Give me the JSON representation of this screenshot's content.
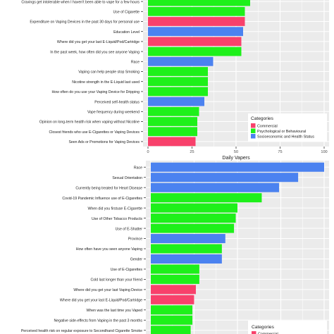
{
  "colors": {
    "commercial": "#F8416B",
    "psych": "#1EF01A",
    "socio": "#4B82F0",
    "panel": "#EBEBEB",
    "grid": "#ffffff"
  },
  "chart_data": [
    {
      "type": "bar",
      "orientation": "horizontal",
      "xlabel": "Daily Vapers",
      "xlim": [
        0,
        100
      ],
      "xticks": [
        "0",
        "25",
        "50",
        "75",
        "100"
      ],
      "grid": true,
      "legend_position": "right",
      "legend": {
        "title": "Categories",
        "entries": [
          {
            "label": "Commercial",
            "key": "commercial"
          },
          {
            "label": "Psychological or Behavioural",
            "key": "psych"
          },
          {
            "label": "Socioeconomic and Health Status",
            "key": "socio"
          }
        ]
      },
      "bars": [
        {
          "label": "Cravings get intolerable when I haven't been able to vape for a few hours",
          "value": 58,
          "cat": "psych"
        },
        {
          "label": "Use of Cigarette",
          "value": 55,
          "cat": "psych"
        },
        {
          "label": "Expenditure on Vaping Devices in the past 30 days for personal use",
          "value": 55,
          "cat": "commercial"
        },
        {
          "label": "Education Level",
          "value": 54,
          "cat": "socio"
        },
        {
          "label": "Where did you get your last E-Liquid/Pod/Cartridge",
          "value": 53,
          "cat": "commercial"
        },
        {
          "label": "In the past week, how often did you see anyone Vaping",
          "value": 53,
          "cat": "psych"
        },
        {
          "label": "Race",
          "value": 37,
          "cat": "socio"
        },
        {
          "label": "Vaping can help people stop Smoking",
          "value": 34,
          "cat": "psych"
        },
        {
          "label": "Nicotine strength in the E-Liquid last used",
          "value": 34,
          "cat": "psych"
        },
        {
          "label": "How often do you use your Vaping Device for Dripping",
          "value": 34,
          "cat": "psych"
        },
        {
          "label": "Perceived self-health status",
          "value": 32,
          "cat": "socio"
        },
        {
          "label": "Vape frequency during weekend",
          "value": 29,
          "cat": "psych"
        },
        {
          "label": "Opinion on long-term health risk when vaping without Nicotine",
          "value": 28,
          "cat": "psych"
        },
        {
          "label": "Closest friends who use E-Cigarettes or Vaping Devices",
          "value": 28,
          "cat": "psych"
        },
        {
          "label": "Seen Ads or Promotions for Vaping Devices",
          "value": 27,
          "cat": "commercial"
        }
      ]
    },
    {
      "type": "bar",
      "orientation": "horizontal",
      "xlim": [
        0,
        100
      ],
      "grid": true,
      "legend": {
        "title": "Categories",
        "entries": [
          {
            "label": "Commercial",
            "key": "commercial"
          }
        ]
      },
      "bars": [
        {
          "label": "Race",
          "value": 100,
          "cat": "socio"
        },
        {
          "label": "Sexual Orientation",
          "value": 85,
          "cat": "socio"
        },
        {
          "label": "Currently being treated for Heart Disease",
          "value": 74,
          "cat": "socio"
        },
        {
          "label": "Covid-19 Pandemic Influence use of E-Cigarettes",
          "value": 64,
          "cat": "psych"
        },
        {
          "label": "When did you firstuse E-Cigarette",
          "value": 50,
          "cat": "psych"
        },
        {
          "label": "Use of Other Tobacco Products",
          "value": 49,
          "cat": "psych"
        },
        {
          "label": "Use of E-Shatter",
          "value": 48,
          "cat": "psych"
        },
        {
          "label": "Province",
          "value": 43,
          "cat": "socio"
        },
        {
          "label": "How often have you seen anyone Vaping",
          "value": 41,
          "cat": "psych"
        },
        {
          "label": "Gender",
          "value": 41,
          "cat": "socio"
        },
        {
          "label": "Use of E-Cigarettes",
          "value": 28,
          "cat": "psych"
        },
        {
          "label": "Cold last longer than your friend",
          "value": 28,
          "cat": "psych"
        },
        {
          "label": "Where did you get your last Vaping Device",
          "value": 26,
          "cat": "commercial"
        },
        {
          "label": "Where did you get your last E-Liquid/Pod/Cartridge",
          "value": 25,
          "cat": "commercial"
        },
        {
          "label": "When was the last time you Vaped",
          "value": 24,
          "cat": "psych"
        },
        {
          "label": "Negative side-effects from Vaping in the past 3 months",
          "value": 24,
          "cat": "psych"
        },
        {
          "label": "Perceived health risk on regular exposure to Secondhand Cigarette Smoke",
          "value": 23,
          "cat": "psych"
        }
      ]
    }
  ]
}
